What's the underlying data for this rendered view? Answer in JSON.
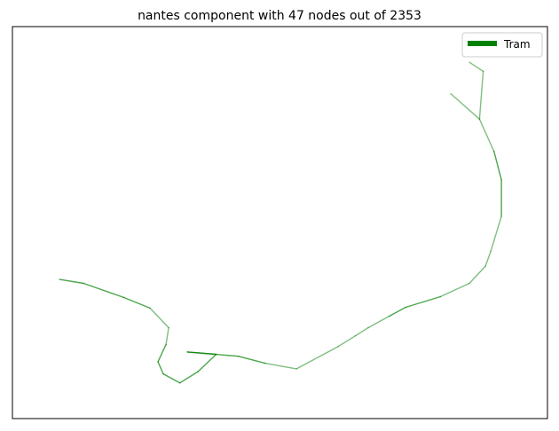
{
  "chart_data": {
    "type": "line",
    "title": "nantes component with 47 nodes out of 2353",
    "xlabel": "",
    "ylabel": "",
    "grid": false,
    "legend": {
      "placement": "top-right",
      "entries": [
        {
          "label": "Tram",
          "color": "#008000"
        }
      ]
    },
    "xlim": [
      0,
      100
    ],
    "ylim": [
      0,
      100
    ],
    "series": [
      {
        "name": "Tram",
        "color": "#008000",
        "segments": [
          {
            "alpha": 0.5,
            "points": [
              [
                85.4,
                90.9
              ],
              [
                88.0,
                88.6
              ]
            ]
          },
          {
            "alpha": 0.5,
            "points": [
              [
                88.0,
                88.6
              ],
              [
                87.3,
                76.4
              ]
            ]
          },
          {
            "alpha": 0.5,
            "points": [
              [
                81.9,
                82.9
              ],
              [
                87.3,
                76.4
              ]
            ]
          },
          {
            "alpha": 0.5,
            "points": [
              [
                87.3,
                76.4
              ],
              [
                90.0,
                68.2
              ]
            ]
          },
          {
            "alpha": 0.7,
            "points": [
              [
                90.0,
                68.2
              ],
              [
                91.4,
                60.9
              ]
            ]
          },
          {
            "alpha": 0.7,
            "points": [
              [
                91.4,
                60.9
              ],
              [
                91.4,
                51.6
              ]
            ]
          },
          {
            "alpha": 0.5,
            "points": [
              [
                91.4,
                51.6
              ],
              [
                89.4,
                42.7
              ]
            ]
          },
          {
            "alpha": 0.5,
            "points": [
              [
                89.4,
                42.7
              ],
              [
                88.4,
                38.9
              ]
            ]
          },
          {
            "alpha": 0.5,
            "points": [
              [
                88.4,
                38.9
              ],
              [
                85.4,
                34.5
              ]
            ]
          },
          {
            "alpha": 0.5,
            "points": [
              [
                85.4,
                34.5
              ],
              [
                80.0,
                31.1
              ]
            ]
          },
          {
            "alpha": 0.7,
            "points": [
              [
                80.0,
                31.1
              ],
              [
                73.5,
                28.4
              ]
            ]
          },
          {
            "alpha": 0.7,
            "points": [
              [
                73.5,
                28.4
              ],
              [
                70.4,
                26.1
              ]
            ]
          },
          {
            "alpha": 0.5,
            "points": [
              [
                70.4,
                26.1
              ],
              [
                66.5,
                23.2
              ]
            ]
          },
          {
            "alpha": 0.5,
            "points": [
              [
                66.5,
                23.2
              ],
              [
                64.1,
                21.1
              ]
            ]
          },
          {
            "alpha": 0.5,
            "points": [
              [
                64.1,
                21.1
              ],
              [
                60.9,
                18.4
              ]
            ]
          },
          {
            "alpha": 0.5,
            "points": [
              [
                60.9,
                18.4
              ],
              [
                53.1,
                12.7
              ]
            ]
          },
          {
            "alpha": 0.5,
            "points": [
              [
                53.1,
                12.7
              ],
              [
                47.3,
                14.1
              ]
            ]
          },
          {
            "alpha": 0.7,
            "points": [
              [
                47.3,
                14.1
              ],
              [
                42.2,
                15.9
              ]
            ]
          },
          {
            "alpha": 0.7,
            "points": [
              [
                42.2,
                15.9
              ],
              [
                32.7,
                17.0
              ]
            ]
          },
          {
            "alpha": 0.7,
            "points": [
              [
                32.7,
                17.0
              ],
              [
                38.1,
                16.4
              ]
            ]
          },
          {
            "alpha": 0.7,
            "points": [
              [
                38.1,
                16.4
              ],
              [
                34.7,
                12.0
              ]
            ]
          },
          {
            "alpha": 0.7,
            "points": [
              [
                34.7,
                12.0
              ],
              [
                31.3,
                9.1
              ]
            ]
          },
          {
            "alpha": 0.7,
            "points": [
              [
                31.3,
                9.1
              ],
              [
                28.2,
                11.4
              ]
            ]
          },
          {
            "alpha": 0.7,
            "points": [
              [
                28.2,
                11.4
              ],
              [
                27.2,
                14.5
              ]
            ]
          },
          {
            "alpha": 0.7,
            "points": [
              [
                27.2,
                14.5
              ],
              [
                28.7,
                18.9
              ]
            ]
          },
          {
            "alpha": 0.5,
            "points": [
              [
                28.7,
                18.9
              ],
              [
                29.2,
                23.2
              ]
            ]
          },
          {
            "alpha": 0.5,
            "points": [
              [
                29.2,
                23.2
              ],
              [
                25.7,
                28.2
              ]
            ]
          },
          {
            "alpha": 0.7,
            "points": [
              [
                25.7,
                28.2
              ],
              [
                20.8,
                30.9
              ]
            ]
          },
          {
            "alpha": 0.7,
            "points": [
              [
                20.8,
                30.9
              ],
              [
                13.3,
                34.5
              ]
            ]
          },
          {
            "alpha": 0.7,
            "points": [
              [
                13.3,
                34.5
              ],
              [
                8.8,
                35.5
              ]
            ]
          }
        ]
      }
    ]
  }
}
